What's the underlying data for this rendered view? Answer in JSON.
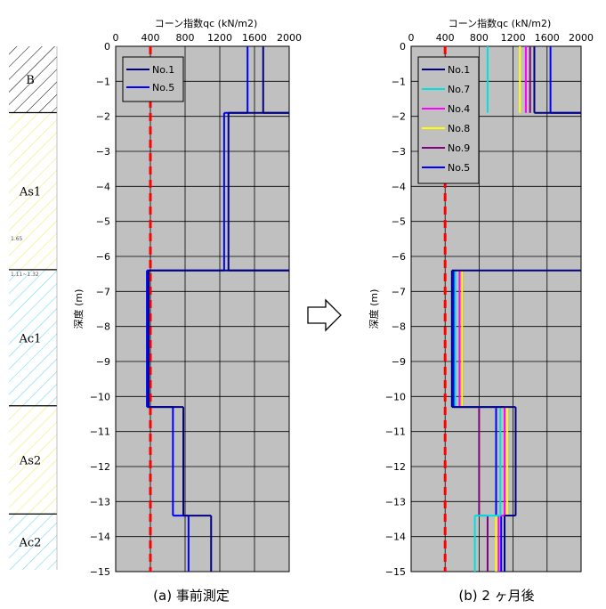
{
  "soil_column": {
    "layers": [
      {
        "label": "B",
        "top": 0,
        "bottom": -1.9,
        "hatch": "#000000"
      },
      {
        "label": "As1",
        "top": -1.9,
        "bottom": -6.4,
        "hatch": "#f2f28c"
      },
      {
        "label": "Ac1",
        "top": -6.4,
        "bottom": -10.3,
        "hatch": "#8ce6f0"
      },
      {
        "label": "As2",
        "top": -10.3,
        "bottom": -13.4,
        "hatch": "#f2f28c"
      },
      {
        "label": "Ac2",
        "top": -13.4,
        "bottom": -15,
        "hatch": "#8ce6f0"
      }
    ],
    "small_labels": [
      "1.65",
      "1.11~1.32"
    ]
  },
  "arrow_icon": "right-arrow-icon",
  "chart_data": [
    {
      "type": "line",
      "caption": "(a)  事前測定",
      "xlabel": "コーン指数qc (kN/m2)",
      "ylabel": "深度 (m)",
      "xlim": [
        0,
        2000
      ],
      "ylim": [
        -15,
        0
      ],
      "xticks": [
        "0",
        "400",
        "800",
        "1200",
        "1600",
        "2000"
      ],
      "yticks": [
        "0",
        "−1",
        "−2",
        "−3",
        "−4",
        "−5",
        "−6",
        "−7",
        "−8",
        "−9",
        "−10",
        "−11",
        "−12",
        "−13",
        "−14",
        "−15"
      ],
      "grid": true,
      "legend_position": "top-left",
      "reference_line": {
        "x": 400,
        "color": "#ff0000",
        "style": "dashed"
      },
      "series": [
        {
          "name": "No.1",
          "color": "#000080",
          "steps": [
            [
              1700,
              0,
              -1.9
            ],
            [
              2000,
              -1.9,
              -1.9
            ],
            [
              1300,
              -1.9,
              -6.4
            ],
            [
              2000,
              -6.4,
              -6.4
            ],
            [
              380,
              -6.4,
              -10.3
            ],
            [
              780,
              -10.3,
              -13.4
            ],
            [
              1100,
              -13.4,
              -15
            ]
          ]
        },
        {
          "name": "No.5",
          "color": "#0000ff",
          "steps": [
            [
              1520,
              0,
              -1.9
            ],
            [
              1250,
              -1.9,
              -6.4
            ],
            [
              360,
              -6.4,
              -10.3
            ],
            [
              660,
              -10.3,
              -13.4
            ],
            [
              840,
              -13.4,
              -15
            ]
          ]
        }
      ]
    },
    {
      "type": "line",
      "caption": "(b)  2 ヶ月後",
      "xlabel": "コーン指数qc (kN/m2)",
      "ylabel": "深度 (m)",
      "xlim": [
        0,
        2000
      ],
      "ylim": [
        -15,
        0
      ],
      "xticks": [
        "0",
        "400",
        "800",
        "1200",
        "1600",
        "2000"
      ],
      "yticks": [
        "0",
        "−1",
        "−2",
        "−3",
        "−4",
        "−5",
        "−6",
        "−7",
        "−8",
        "−9",
        "−10",
        "−11",
        "−12",
        "−13",
        "−14",
        "−15"
      ],
      "grid": true,
      "legend_position": "top-left",
      "reference_line": {
        "x": 400,
        "color": "#ff0000",
        "style": "dashed"
      },
      "series": [
        {
          "name": "No.1",
          "color": "#000080",
          "steps": [
            [
              1450,
              0,
              -1.9
            ],
            [
              2000,
              -1.9,
              -1.9
            ],
            [
              2000,
              -6.4,
              -6.4
            ],
            [
              480,
              -6.4,
              -10.3
            ],
            [
              1230,
              -10.3,
              -13.4
            ],
            [
              1100,
              -13.4,
              -15
            ]
          ]
        },
        {
          "name": "No.7",
          "color": "#00e0e0",
          "steps": [
            [
              900,
              0,
              -1.9
            ],
            [
              520,
              -6.4,
              -10.3
            ],
            [
              1050,
              -10.3,
              -13.4
            ],
            [
              750,
              -13.4,
              -15
            ]
          ]
        },
        {
          "name": "No.4",
          "color": "#ff00ff",
          "steps": [
            [
              1350,
              0,
              -1.9
            ],
            [
              570,
              -6.4,
              -10.3
            ],
            [
              1100,
              -10.3,
              -13.4
            ],
            [
              1030,
              -13.4,
              -15
            ]
          ]
        },
        {
          "name": "No.8",
          "color": "#ffff00",
          "steps": [
            [
              1280,
              0,
              -1.9
            ],
            [
              600,
              -6.4,
              -10.3
            ],
            [
              1130,
              -10.3,
              -13.4
            ],
            [
              1000,
              -13.4,
              -15
            ]
          ]
        },
        {
          "name": "No.9",
          "color": "#800080",
          "steps": [
            [
              1400,
              0,
              -1.9
            ],
            [
              600,
              -6.4,
              -10.3
            ],
            [
              800,
              -10.3,
              -13.4
            ],
            [
              900,
              -13.4,
              -15
            ]
          ]
        },
        {
          "name": "No.5",
          "color": "#0000ff",
          "steps": [
            [
              1640,
              0,
              -1.9
            ],
            [
              2000,
              -1.9,
              -1.9
            ],
            [
              500,
              -6.4,
              -10.3
            ],
            [
              1000,
              -10.3,
              -13.4
            ],
            [
              1060,
              -13.4,
              -15
            ]
          ]
        }
      ]
    }
  ]
}
